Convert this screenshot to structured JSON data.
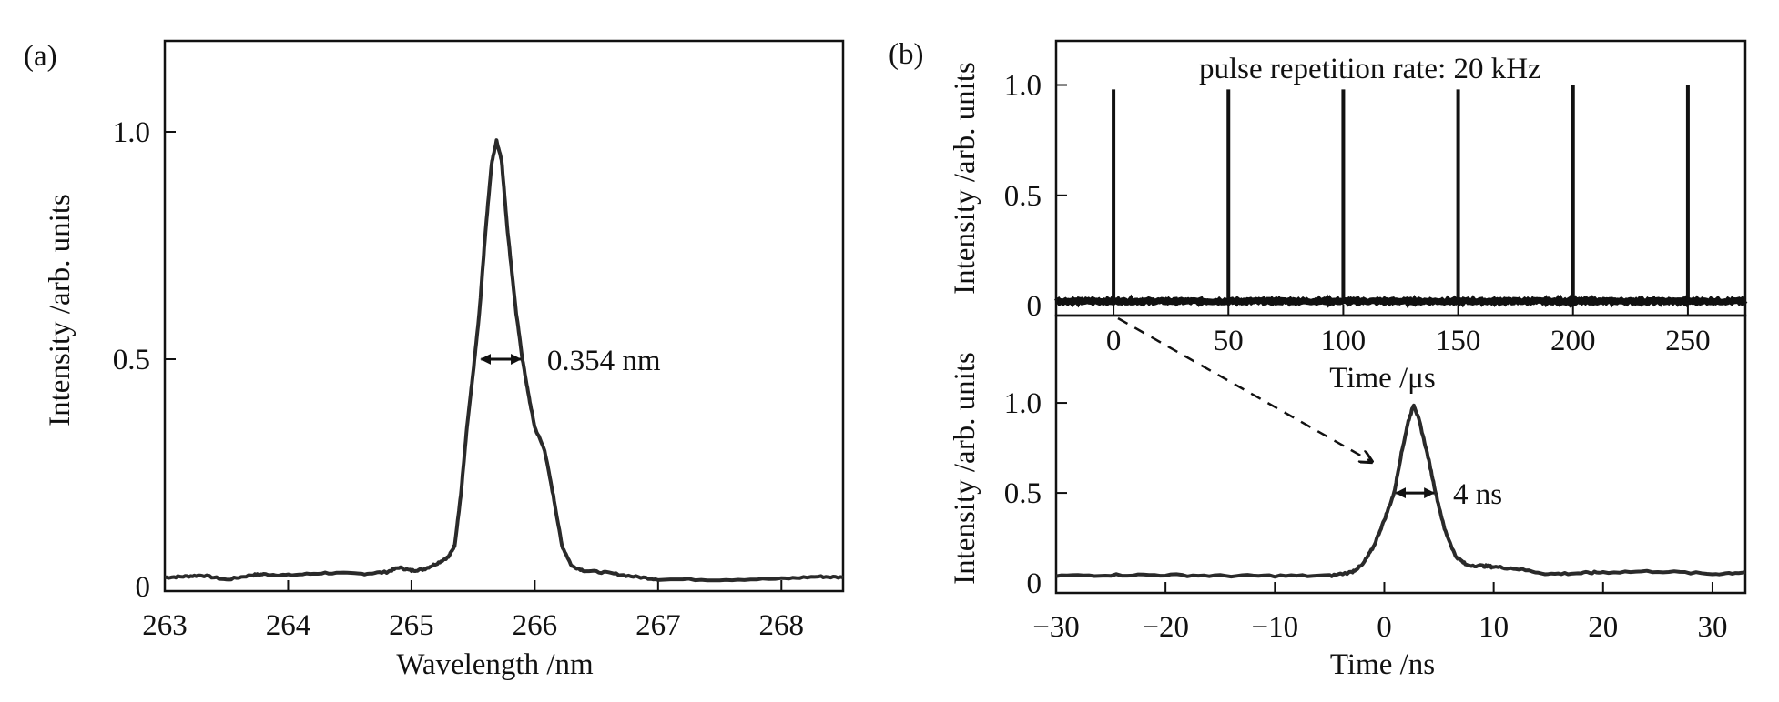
{
  "chart_data": [
    {
      "panel": "(a)",
      "type": "line",
      "xlabel": "Wavelength /nm",
      "ylabel": "Intensity /arb. units",
      "xlim": [
        263,
        268.5
      ],
      "ylim": [
        -0.01,
        1.2
      ],
      "xticks": [
        263,
        264,
        265,
        266,
        267,
        268
      ],
      "xtick_labels": [
        "263",
        "264",
        "265",
        "266",
        "267",
        "268"
      ],
      "yticks": [
        0,
        0.5,
        1.0
      ],
      "ytick_labels": [
        "0",
        "0.5",
        "1.0"
      ],
      "grid": false,
      "color": "#2a2a2a",
      "x": [
        263.0,
        263.15,
        263.3,
        263.5,
        263.7,
        263.8,
        264.0,
        264.3,
        264.6,
        264.8,
        264.9,
        265.0,
        265.1,
        265.2,
        265.3,
        265.35,
        265.4,
        265.45,
        265.5,
        265.55,
        265.6,
        265.65,
        265.69,
        265.73,
        265.78,
        265.85,
        265.9,
        265.95,
        266.0,
        266.08,
        266.15,
        266.22,
        266.3,
        266.4,
        266.6,
        266.8,
        267.0,
        267.5,
        268.0,
        268.3,
        268.5
      ],
      "y": [
        0.02,
        0.022,
        0.025,
        0.015,
        0.025,
        0.027,
        0.025,
        0.03,
        0.028,
        0.032,
        0.042,
        0.035,
        0.038,
        0.05,
        0.065,
        0.09,
        0.2,
        0.35,
        0.47,
        0.6,
        0.78,
        0.93,
        0.98,
        0.94,
        0.78,
        0.6,
        0.5,
        0.42,
        0.35,
        0.3,
        0.2,
        0.09,
        0.045,
        0.035,
        0.03,
        0.022,
        0.016,
        0.015,
        0.017,
        0.022,
        0.02
      ],
      "annotations": [
        {
          "text": "0.354 nm",
          "fwhm": [
            265.55,
            265.9
          ],
          "at_y": 0.5
        }
      ]
    },
    {
      "panel": "(b)",
      "type": "line",
      "xlabel": "Time /μs",
      "ylabel": "Intensity /arb. units",
      "xlim": [
        -25,
        275
      ],
      "ylim": [
        -0.045,
        1.2
      ],
      "xticks": [
        0,
        50,
        100,
        150,
        200,
        250
      ],
      "xtick_labels": [
        "0",
        "50",
        "100",
        "150",
        "200",
        "250"
      ],
      "yticks": [
        0,
        0.5,
        1.0
      ],
      "ytick_labels": [
        "0",
        "0.5",
        "1.0"
      ],
      "grid": false,
      "color": "#111111",
      "baseline": 0.02,
      "pulses": {
        "x": [
          0,
          50,
          100,
          150,
          200,
          250
        ],
        "y": [
          0.98,
          0.98,
          0.98,
          0.98,
          1.0,
          1.0
        ]
      },
      "annotations": [
        {
          "text": "pulse repetition rate: 20 kHz"
        }
      ]
    },
    {
      "panel": "(b)",
      "type": "line",
      "xlabel": "Time /ns",
      "ylabel": "Intensity /arb. units",
      "xlim": [
        -30,
        33
      ],
      "ylim": [
        -0.055,
        1.485
      ],
      "xticks": [
        -30,
        -20,
        -10,
        0,
        10,
        20,
        30
      ],
      "xtick_labels": [
        "−30",
        "−20",
        "−10",
        "0",
        "10",
        "20",
        "30"
      ],
      "yticks": [
        0,
        0.5,
        1.0
      ],
      "ytick_labels": [
        "0",
        "0.5",
        "1.0"
      ],
      "grid": false,
      "color": "#333333",
      "x": [
        -30,
        -25,
        -20,
        -15,
        -10,
        -5,
        -3,
        -2,
        -1,
        0,
        0.9,
        1.5,
        2.2,
        2.7,
        3.2,
        4,
        4.7,
        5.5,
        6.5,
        7.5,
        9,
        10,
        12,
        15,
        18,
        20,
        25,
        30,
        33
      ],
      "y": [
        0.04,
        0.045,
        0.045,
        0.04,
        0.04,
        0.04,
        0.06,
        0.1,
        0.2,
        0.35,
        0.5,
        0.7,
        0.9,
        0.99,
        0.9,
        0.7,
        0.5,
        0.3,
        0.15,
        0.1,
        0.095,
        0.09,
        0.08,
        0.05,
        0.055,
        0.06,
        0.065,
        0.05,
        0.06
      ],
      "annotations": [
        {
          "text": "4 ns",
          "fwhm": [
            0.9,
            4.7
          ],
          "at_y": 0.5
        }
      ]
    }
  ],
  "labels": {
    "a": "(a)",
    "b": "(b)"
  }
}
